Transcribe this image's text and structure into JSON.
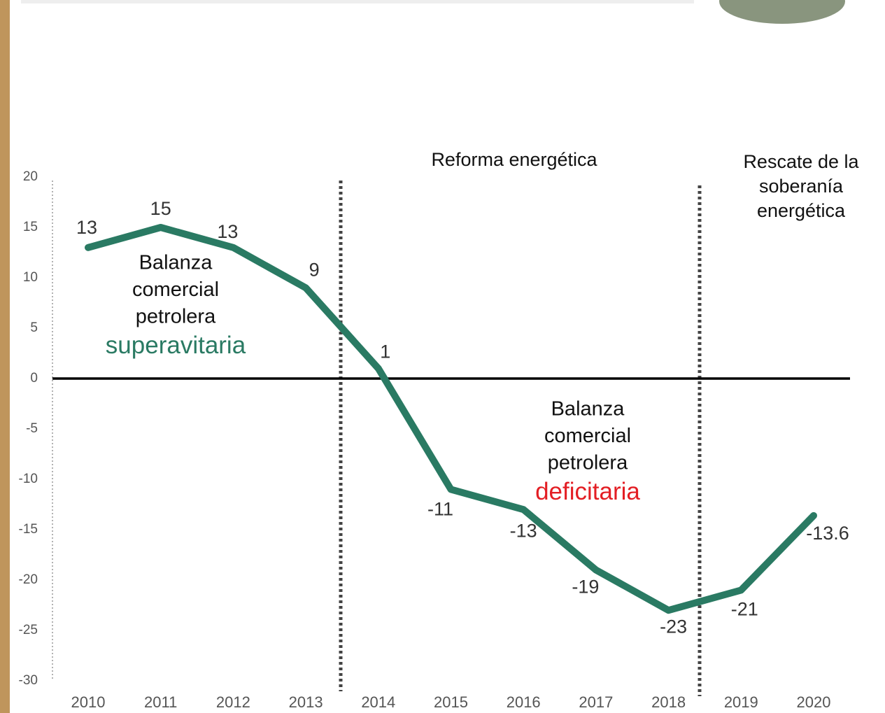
{
  "chart_data": {
    "type": "line",
    "categories": [
      "2010",
      "2011",
      "2012",
      "2013",
      "2014",
      "2015",
      "2016",
      "2017",
      "2018",
      "2019",
      "2020"
    ],
    "series": [
      {
        "name": "Balanza comercial petrolera",
        "color": "#2a7a63",
        "values": [
          13,
          15,
          13,
          9,
          1,
          -11,
          -13,
          -19,
          -23,
          -21,
          -13.6
        ]
      }
    ],
    "ylim": [
      -30,
      20
    ],
    "yticks": [
      20,
      15,
      10,
      5,
      0,
      -5,
      -10,
      -15,
      -20,
      -25,
      -30
    ],
    "annotations": [
      {
        "lines": [
          "Reforma energética"
        ]
      },
      {
        "lines": [
          "Rescate de la",
          "soberanía",
          "energética"
        ]
      },
      {
        "lines": [
          "Balanza",
          "comercial",
          "petrolera"
        ],
        "highlight": "superavitaria",
        "highlight_color": "#2a7a63"
      },
      {
        "lines": [
          "Balanza",
          "comercial",
          "petrolera"
        ],
        "highlight": "deficitaria",
        "highlight_color": "#e31e24"
      }
    ]
  }
}
